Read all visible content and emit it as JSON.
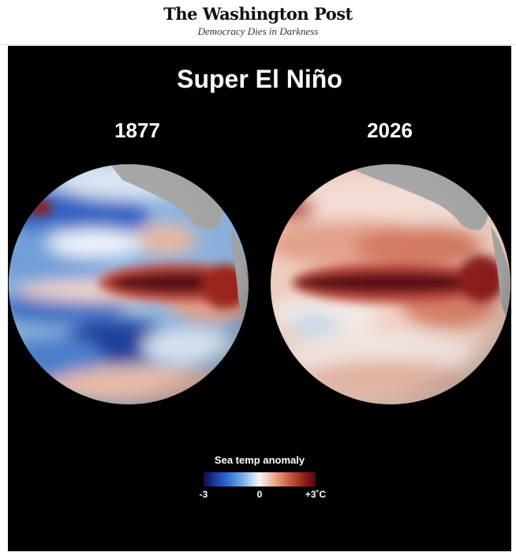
{
  "header": {
    "masthead": "The Washington Post",
    "tagline": "Democracy Dies in Darkness"
  },
  "graphic": {
    "title": "Super El Niño",
    "globes": [
      {
        "year": "1877"
      },
      {
        "year": "2026"
      }
    ],
    "legend": {
      "title": "Sea temp anomaly",
      "min_label": "-3",
      "mid_label": "0",
      "max_label": "+3˚C",
      "colors": {
        "cold": "#0b0d4a",
        "cool": "#2f6fd0",
        "neutral": "#f7f3f0",
        "warm": "#c6543c",
        "hot": "#4d0a0c"
      }
    },
    "land_color": "#a9a9a9",
    "background": "#000000"
  }
}
